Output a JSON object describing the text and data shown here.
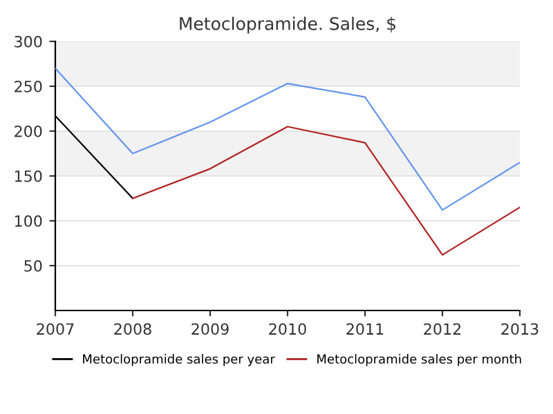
{
  "chart_data": {
    "type": "line",
    "title": "Metoclopramide. Sales, $",
    "x": [
      2007,
      2008,
      2009,
      2010,
      2011,
      2012,
      2013
    ],
    "series": [
      {
        "color": "#6495ed",
        "values": [
          270,
          175,
          210,
          253,
          238,
          112,
          165
        ]
      },
      {
        "name": "Metoclopramide sales per year",
        "color": "#000000",
        "values": [
          217,
          125,
          null,
          null,
          null,
          null,
          null
        ]
      },
      {
        "name": "Metoclopramide sales per month",
        "color": "#b22222",
        "values": [
          null,
          125,
          158,
          205,
          187,
          62,
          115
        ]
      }
    ],
    "xlim": [
      2007,
      2013
    ],
    "xticks": [
      2007,
      2008,
      2009,
      2010,
      2011,
      2012,
      2013
    ],
    "ylim": [
      0,
      300
    ],
    "yticks": [
      50,
      100,
      150,
      200,
      250,
      300
    ],
    "bands": [
      {
        "axis": "y",
        "from": 150,
        "to": 200,
        "color": "#f2f2f2"
      },
      {
        "axis": "y",
        "from": 250,
        "to": 300,
        "color": "#f2f2f2"
      }
    ],
    "grid": "y",
    "legend": "bottom",
    "marker": "none",
    "line_style": "solid"
  }
}
